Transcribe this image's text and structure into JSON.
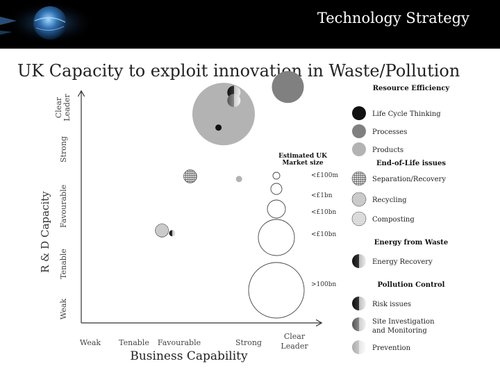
{
  "header": {
    "title": "Technology Strategy",
    "logo_icon": "globe-logo-icon"
  },
  "slide": {
    "title": "UK Capacity to exploit innovation in Waste/Pollution"
  },
  "chart_data": {
    "type": "bubble",
    "title": "",
    "xlabel": "Business Capability",
    "ylabel": "R & D Capacity",
    "x_categories": [
      "Weak",
      "Tenable",
      "Favourable",
      "Strong",
      "Clear Leader"
    ],
    "y_categories": [
      "Weak",
      "Tenable",
      "Favourable",
      "Strong",
      "Clear Leader"
    ],
    "grid": false,
    "size_legend": {
      "title": "Estimated UK Market size",
      "entries": [
        "<£100m",
        "<£1bn",
        "<£10bn",
        "<£10bn",
        ">100bn"
      ]
    },
    "legend_groups": [
      {
        "title": "Resource Efficiency",
        "items": [
          {
            "label": "Life Cycle Thinking",
            "style": "black"
          },
          {
            "label": "Processes",
            "style": "dark-grey"
          },
          {
            "label": "Products",
            "style": "light-grey"
          }
        ]
      },
      {
        "title": "End-of-Life issues",
        "items": [
          {
            "label": "Separation/Recovery",
            "style": "grid"
          },
          {
            "label": "Recycling",
            "style": "fine-grid"
          },
          {
            "label": "Composting",
            "style": "hatch"
          }
        ]
      },
      {
        "title": "Energy from Waste",
        "items": [
          {
            "label": "Energy Recovery",
            "style": "gradient-dark"
          }
        ]
      },
      {
        "title": "Pollution Control",
        "items": [
          {
            "label": "Risk issues",
            "style": "gradient-dark"
          },
          {
            "label": "Site Investigation and Monitoring",
            "style": "gradient-mid"
          },
          {
            "label": "Prevention",
            "style": "gradient-light"
          }
        ]
      }
    ],
    "bubbles": [
      {
        "series": "Products",
        "x": 2.5,
        "y": 3.6,
        "size": 4,
        "style": "light-grey"
      },
      {
        "series": "Processes",
        "x": 3.75,
        "y": 4.1,
        "size": 3,
        "style": "dark-grey"
      },
      {
        "series": "Products",
        "x": 2.45,
        "y": 4.0,
        "size": 1,
        "style": "light-grey"
      },
      {
        "series": "Risk issues",
        "x": 2.7,
        "y": 4.0,
        "size": 1,
        "style": "gradient-dark"
      },
      {
        "series": "Site Investigation and Monitoring",
        "x": 2.7,
        "y": 3.85,
        "size": 1,
        "style": "gradient-mid"
      },
      {
        "series": "Life Cycle Thinking",
        "x": 2.4,
        "y": 3.35,
        "size": 0,
        "style": "black"
      },
      {
        "series": "Separation/Recovery",
        "x": 1.85,
        "y": 2.45,
        "size": 1,
        "style": "grid"
      },
      {
        "series": "Products",
        "x": 2.8,
        "y": 2.4,
        "size": 0,
        "style": "light-grey"
      },
      {
        "series": "Recycling",
        "x": 1.3,
        "y": 1.45,
        "size": 1,
        "style": "fine-grid"
      },
      {
        "series": "Energy Recovery",
        "x": 1.5,
        "y": 1.4,
        "size": 0,
        "style": "gradient-dark"
      }
    ]
  }
}
